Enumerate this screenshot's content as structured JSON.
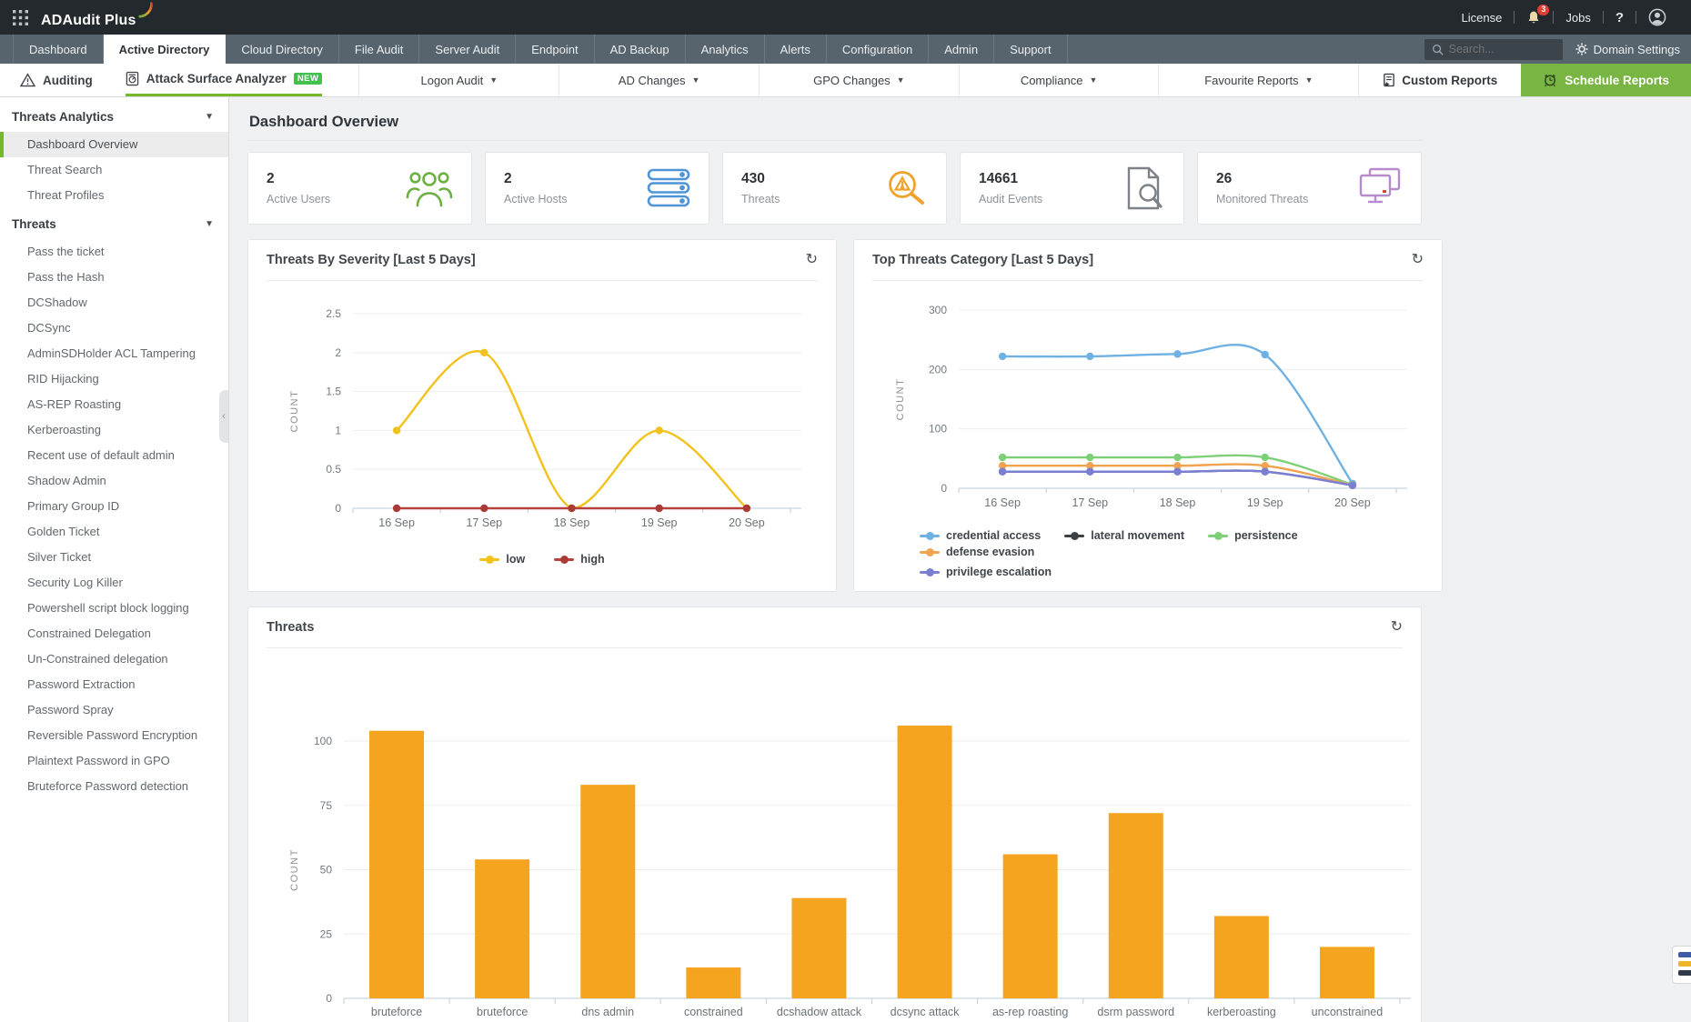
{
  "header": {
    "product": "ADAudit Plus",
    "license": "License",
    "jobs": "Jobs",
    "help": "?",
    "notification_count": "3"
  },
  "topbar": {
    "search_placeholder": "Search...",
    "domain_settings": "Domain Settings"
  },
  "tabs": [
    {
      "label": "Dashboard"
    },
    {
      "label": "Active Directory",
      "active": true
    },
    {
      "label": "Cloud Directory"
    },
    {
      "label": "File Audit"
    },
    {
      "label": "Server Audit"
    },
    {
      "label": "Endpoint"
    },
    {
      "label": "AD Backup"
    },
    {
      "label": "Analytics"
    },
    {
      "label": "Alerts"
    },
    {
      "label": "Configuration"
    },
    {
      "label": "Admin"
    },
    {
      "label": "Support"
    }
  ],
  "subnav": {
    "auditing": "Auditing",
    "attack_surface_analyzer": "Attack Surface Analyzer",
    "new_badge": "NEW",
    "dropdowns": [
      "Logon Audit",
      "AD Changes",
      "GPO Changes",
      "Compliance",
      "Favourite Reports"
    ],
    "custom_reports": "Custom Reports",
    "schedule_reports": "Schedule Reports"
  },
  "sidebar": {
    "sections": [
      {
        "title": "Threats Analytics",
        "items": [
          {
            "label": "Dashboard Overview",
            "active": true
          },
          {
            "label": "Threat Search"
          },
          {
            "label": "Threat Profiles"
          }
        ]
      },
      {
        "title": "Threats",
        "items": [
          {
            "label": "Pass the ticket"
          },
          {
            "label": "Pass the Hash"
          },
          {
            "label": "DCShadow"
          },
          {
            "label": "DCSync"
          },
          {
            "label": "AdminSDHolder ACL Tampering"
          },
          {
            "label": "RID Hijacking"
          },
          {
            "label": "AS-REP Roasting"
          },
          {
            "label": "Kerberoasting"
          },
          {
            "label": "Recent use of default admin"
          },
          {
            "label": "Shadow Admin"
          },
          {
            "label": "Primary Group ID"
          },
          {
            "label": "Golden Ticket"
          },
          {
            "label": "Silver Ticket"
          },
          {
            "label": "Security Log Killer"
          },
          {
            "label": "Powershell script block logging"
          },
          {
            "label": "Constrained Delegation"
          },
          {
            "label": "Un-Constrained delegation"
          },
          {
            "label": "Password Extraction"
          },
          {
            "label": "Password Spray"
          },
          {
            "label": "Reversible Password Encryption"
          },
          {
            "label": "Plaintext Password in GPO"
          },
          {
            "label": "Bruteforce Password detection"
          }
        ]
      }
    ]
  },
  "overview": {
    "title": "Dashboard Overview",
    "cards": [
      {
        "value": "2",
        "label": "Active Users",
        "icon": "users-icon",
        "color": "#6cb043"
      },
      {
        "value": "2",
        "label": "Active Hosts",
        "icon": "servers-icon",
        "color": "#4f94d6"
      },
      {
        "value": "430",
        "label": "Threats",
        "icon": "threat-scan-icon",
        "color": "#f0a32a"
      },
      {
        "value": "14661",
        "label": "Audit Events",
        "icon": "audit-document-icon",
        "color": "#7c8287"
      },
      {
        "value": "26",
        "label": "Monitored Threats",
        "icon": "monitors-icon",
        "color": "#b789cf"
      }
    ]
  },
  "chart_data": [
    {
      "type": "line",
      "title": "Threats By Severity [Last 5 Days]",
      "ylabel": "COUNT",
      "x": [
        "16 Sep",
        "17 Sep",
        "18 Sep",
        "19 Sep",
        "20 Sep"
      ],
      "ylim": [
        0,
        2.5
      ],
      "yticks": [
        0,
        0.5,
        1,
        1.5,
        2,
        2.5
      ],
      "grid": true,
      "legend_position": "bottom-center",
      "series": [
        {
          "name": "low",
          "color": "#f3c21a",
          "dot_color": "#f3c21a",
          "values": [
            1,
            2,
            0,
            1,
            0
          ]
        },
        {
          "name": "high",
          "color": "#b9413c",
          "dot_color": "#a93a36",
          "values": [
            0,
            0,
            0,
            0,
            0
          ]
        }
      ]
    },
    {
      "type": "line",
      "title": "Top Threats Category [Last 5 Days]",
      "ylabel": "COUNT",
      "x": [
        "16 Sep",
        "17 Sep",
        "18 Sep",
        "19 Sep",
        "20 Sep"
      ],
      "ylim": [
        0,
        300
      ],
      "yticks": [
        0,
        100,
        200,
        300
      ],
      "grid": true,
      "legend_position": "bottom-left",
      "series": [
        {
          "name": "credential access",
          "color": "#6fb1e3",
          "values": [
            222,
            222,
            226,
            225,
            8
          ]
        },
        {
          "name": "lateral movement",
          "color": "#3b4045",
          "values": [
            28,
            28,
            28,
            28,
            5
          ]
        },
        {
          "name": "persistence",
          "color": "#7ed077",
          "values": [
            52,
            52,
            52,
            52,
            6
          ]
        },
        {
          "name": "defense evasion",
          "color": "#f0a452",
          "values": [
            38,
            38,
            38,
            38,
            5
          ]
        },
        {
          "name": "privilege escalation",
          "color": "#7b7fd4",
          "values": [
            28,
            28,
            28,
            28,
            5
          ]
        }
      ]
    },
    {
      "type": "bar",
      "title": "Threats",
      "ylabel": "COUNT",
      "categories": [
        "bruteforce",
        "bruteforce",
        "dns admin",
        "constrained",
        "dcshadow attack",
        "dcsync attack",
        "as-rep roasting",
        "dsrm password",
        "kerberoasting",
        "unconstrained"
      ],
      "values": [
        104,
        54,
        83,
        12,
        39,
        106,
        56,
        72,
        32,
        20
      ],
      "color": "#f4a41f",
      "yticks": [
        0,
        25,
        50,
        75,
        100
      ],
      "ylim": [
        0,
        125
      ]
    }
  ],
  "widget": {
    "stripe_colors": [
      "#3b5ba5",
      "#f0b429",
      "#2e3a4a"
    ]
  }
}
